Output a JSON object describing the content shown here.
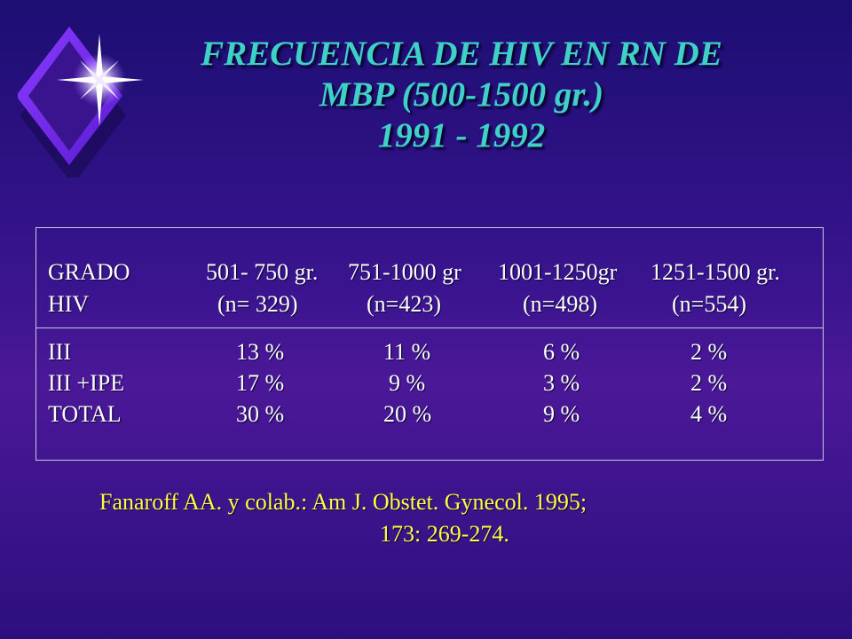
{
  "title": {
    "line1": "FRECUENCIA DE HIV EN RN DE",
    "line2": "MBP (500-1500 gr.)",
    "line3": "1991 - 1992"
  },
  "table": {
    "header": {
      "row1": [
        "GRADO",
        "501- 750 gr.",
        "751-1000 gr",
        "1001-1250gr",
        "1251-1500 gr."
      ],
      "row2": [
        "HIV",
        "(n= 329)",
        "(n=423)",
        "(n=498)",
        "(n=554)"
      ]
    },
    "rows": [
      [
        "III",
        "13 %",
        "11 %",
        "6 %",
        "2 %"
      ],
      [
        "III +IPE",
        "17 %",
        "9 %",
        "3 %",
        "2 %"
      ],
      [
        "TOTAL",
        "30 %",
        "20 %",
        "9 %",
        "4 %"
      ]
    ]
  },
  "citation": {
    "line1": "Fanaroff  AA.  y  colab.:  Am J. Obstet. Gynecol. 1995;",
    "line2": "173: 269-274."
  },
  "colors": {
    "title": "#3fd0c8",
    "body_text": "#ffffff",
    "citation": "#ffff44",
    "background": "#3a148f"
  },
  "icons": {
    "logo": "diamond-star-icon"
  }
}
